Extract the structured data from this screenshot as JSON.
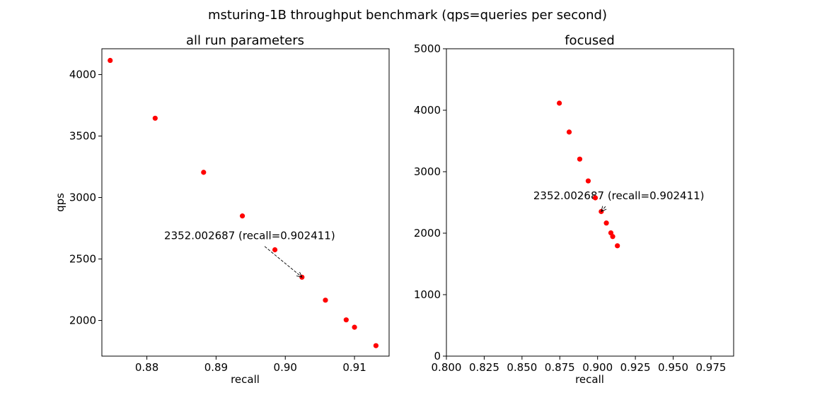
{
  "figure": {
    "suptitle": "msturing-1B throughput benchmark (qps=queries per second)"
  },
  "chart_data": [
    {
      "type": "scatter",
      "title": "all run parameters",
      "xlabel": "recall",
      "ylabel": "qps",
      "xlim": [
        0.8735,
        0.915
      ],
      "ylim": [
        1710,
        4210
      ],
      "xticks": [
        0.88,
        0.89,
        0.9,
        0.91
      ],
      "xtick_labels": [
        "0.88",
        "0.89",
        "0.90",
        "0.91"
      ],
      "yticks": [
        2000,
        2500,
        3000,
        3500,
        4000
      ],
      "ytick_labels": [
        "2000",
        "2500",
        "3000",
        "3500",
        "4000"
      ],
      "grid": false,
      "marker_color": "#ff0000",
      "points": [
        {
          "x": 0.8747,
          "y": 4115
        },
        {
          "x": 0.8812,
          "y": 3645
        },
        {
          "x": 0.8882,
          "y": 3205
        },
        {
          "x": 0.8938,
          "y": 2850
        },
        {
          "x": 0.8985,
          "y": 2575
        },
        {
          "x": 0.902411,
          "y": 2352.002687
        },
        {
          "x": 0.9058,
          "y": 2165
        },
        {
          "x": 0.9088,
          "y": 2005
        },
        {
          "x": 0.91,
          "y": 1945
        },
        {
          "x": 0.9131,
          "y": 1795
        }
      ],
      "annotation": {
        "text": "2352.002687 (recall=0.902411)",
        "target": {
          "x": 0.902411,
          "y": 2352.002687
        },
        "text_pos": {
          "x": 0.8825,
          "y": 2660
        }
      }
    },
    {
      "type": "scatter",
      "title": "focused",
      "xlabel": "recall",
      "ylabel": "",
      "xlim": [
        0.8,
        0.99
      ],
      "ylim": [
        0,
        5000
      ],
      "xticks": [
        0.8,
        0.825,
        0.85,
        0.875,
        0.9,
        0.925,
        0.95,
        0.975
      ],
      "xtick_labels": [
        "0.800",
        "0.825",
        "0.850",
        "0.875",
        "0.900",
        "0.925",
        "0.950",
        "0.975"
      ],
      "yticks": [
        0,
        1000,
        2000,
        3000,
        4000,
        5000
      ],
      "ytick_labels": [
        "0",
        "1000",
        "2000",
        "3000",
        "4000",
        "5000"
      ],
      "grid": false,
      "marker_color": "#ff0000",
      "points": [
        {
          "x": 0.8747,
          "y": 4115
        },
        {
          "x": 0.8812,
          "y": 3645
        },
        {
          "x": 0.8882,
          "y": 3205
        },
        {
          "x": 0.8938,
          "y": 2850
        },
        {
          "x": 0.8985,
          "y": 2575
        },
        {
          "x": 0.902411,
          "y": 2352.002687
        },
        {
          "x": 0.9058,
          "y": 2165
        },
        {
          "x": 0.9088,
          "y": 2005
        },
        {
          "x": 0.91,
          "y": 1945
        },
        {
          "x": 0.9131,
          "y": 1795
        }
      ],
      "annotation": {
        "text": "2352.002687 (recall=0.902411)",
        "target": {
          "x": 0.902411,
          "y": 2352.002687
        },
        "text_pos": {
          "x": 0.8575,
          "y": 2550
        }
      }
    }
  ]
}
